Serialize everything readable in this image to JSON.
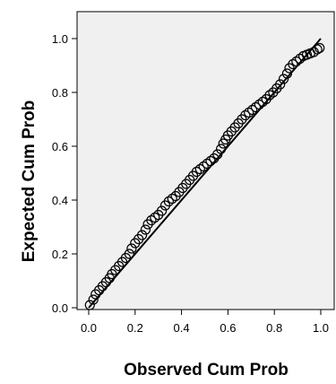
{
  "chart_data": {
    "type": "scatter",
    "title": "",
    "xlabel": "Observed Cum Prob",
    "ylabel": "Expected Cum Prob",
    "xlim": [
      0,
      1
    ],
    "ylim": [
      0,
      1
    ],
    "x_ticks": [
      "0.0",
      "0.2",
      "0.4",
      "0.6",
      "0.8",
      "1.0"
    ],
    "y_ticks": [
      "0.0",
      "0.2",
      "0.4",
      "0.6",
      "0.8",
      "1.0"
    ],
    "grid": false,
    "legend": "none",
    "reference_line": [
      [
        0,
        0
      ],
      [
        1,
        1
      ]
    ],
    "marker": "open-circle",
    "colors": {
      "plot_background": "#f0f0f0",
      "marker_stroke": "#000000",
      "reference_line": "#000000"
    },
    "points": [
      [
        0.005,
        0.01
      ],
      [
        0.02,
        0.03
      ],
      [
        0.03,
        0.05
      ],
      [
        0.045,
        0.065
      ],
      [
        0.06,
        0.08
      ],
      [
        0.075,
        0.095
      ],
      [
        0.09,
        0.11
      ],
      [
        0.1,
        0.125
      ],
      [
        0.115,
        0.14
      ],
      [
        0.13,
        0.155
      ],
      [
        0.145,
        0.17
      ],
      [
        0.16,
        0.185
      ],
      [
        0.175,
        0.2
      ],
      [
        0.185,
        0.22
      ],
      [
        0.2,
        0.24
      ],
      [
        0.215,
        0.255
      ],
      [
        0.23,
        0.27
      ],
      [
        0.245,
        0.29
      ],
      [
        0.255,
        0.31
      ],
      [
        0.27,
        0.325
      ],
      [
        0.285,
        0.335
      ],
      [
        0.3,
        0.345
      ],
      [
        0.315,
        0.36
      ],
      [
        0.33,
        0.38
      ],
      [
        0.345,
        0.395
      ],
      [
        0.36,
        0.405
      ],
      [
        0.375,
        0.415
      ],
      [
        0.39,
        0.43
      ],
      [
        0.405,
        0.445
      ],
      [
        0.42,
        0.46
      ],
      [
        0.435,
        0.475
      ],
      [
        0.45,
        0.49
      ],
      [
        0.465,
        0.505
      ],
      [
        0.48,
        0.515
      ],
      [
        0.495,
        0.525
      ],
      [
        0.51,
        0.535
      ],
      [
        0.525,
        0.545
      ],
      [
        0.54,
        0.555
      ],
      [
        0.555,
        0.57
      ],
      [
        0.57,
        0.59
      ],
      [
        0.58,
        0.61
      ],
      [
        0.59,
        0.625
      ],
      [
        0.6,
        0.64
      ],
      [
        0.615,
        0.655
      ],
      [
        0.63,
        0.67
      ],
      [
        0.645,
        0.685
      ],
      [
        0.66,
        0.7
      ],
      [
        0.675,
        0.715
      ],
      [
        0.69,
        0.725
      ],
      [
        0.705,
        0.735
      ],
      [
        0.72,
        0.745
      ],
      [
        0.735,
        0.755
      ],
      [
        0.75,
        0.765
      ],
      [
        0.765,
        0.775
      ],
      [
        0.78,
        0.79
      ],
      [
        0.795,
        0.8
      ],
      [
        0.81,
        0.815
      ],
      [
        0.825,
        0.83
      ],
      [
        0.84,
        0.85
      ],
      [
        0.855,
        0.87
      ],
      [
        0.865,
        0.89
      ],
      [
        0.88,
        0.905
      ],
      [
        0.895,
        0.915
      ],
      [
        0.91,
        0.925
      ],
      [
        0.925,
        0.935
      ],
      [
        0.94,
        0.94
      ],
      [
        0.955,
        0.945
      ],
      [
        0.97,
        0.95
      ],
      [
        0.985,
        0.96
      ],
      [
        0.995,
        0.965
      ]
    ]
  }
}
